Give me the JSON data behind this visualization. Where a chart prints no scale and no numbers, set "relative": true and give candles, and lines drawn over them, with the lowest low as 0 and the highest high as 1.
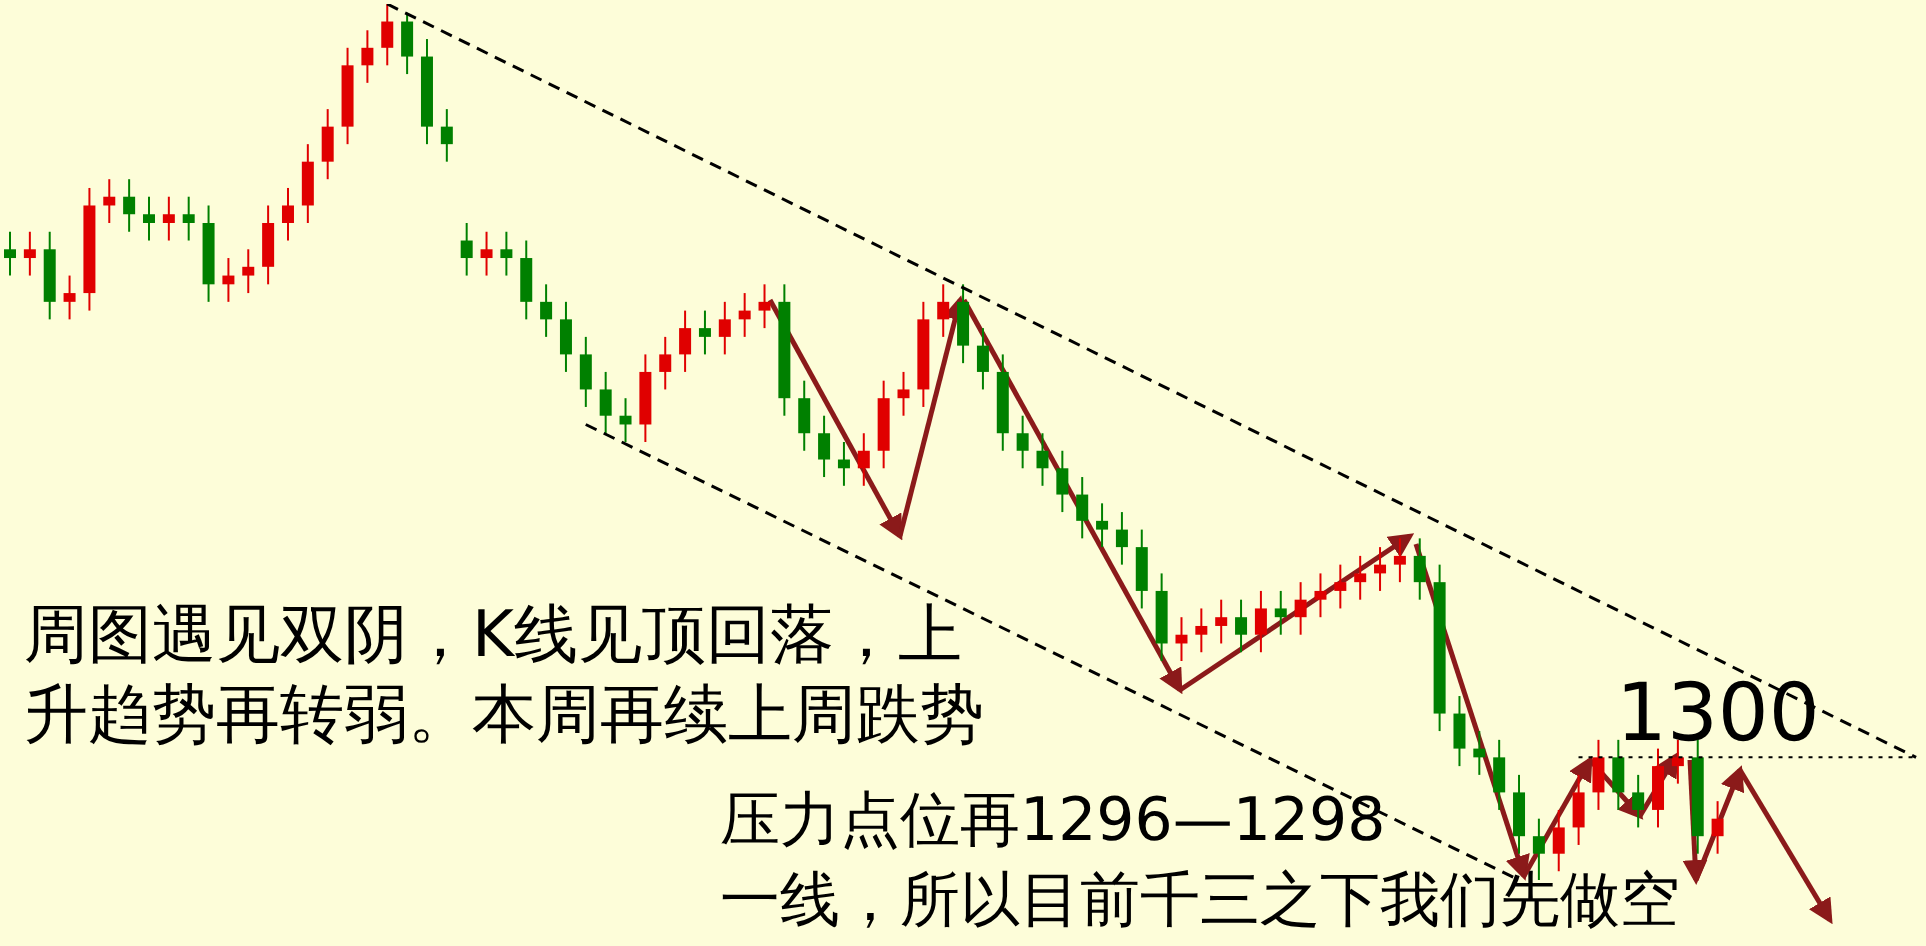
{
  "chart_data": {
    "type": "candlestick",
    "relative": true,
    "tick_labels": false,
    "categories": [
      null,
      null,
      null,
      null,
      null,
      null,
      null,
      null,
      null,
      null,
      null,
      null,
      null,
      null,
      null,
      null,
      null,
      null,
      null,
      null,
      null,
      null,
      null,
      null,
      null,
      null,
      null,
      null,
      null,
      null,
      null,
      null,
      null,
      null,
      null,
      null,
      null,
      null,
      null,
      null,
      null,
      null,
      null,
      null,
      null,
      null,
      null,
      null,
      null,
      null,
      null,
      null,
      null,
      null,
      null,
      null,
      null,
      null,
      null,
      null,
      null,
      null,
      null,
      null,
      null,
      null,
      null,
      null,
      null,
      null,
      null,
      null,
      null,
      null,
      null,
      null,
      null,
      null,
      null,
      null,
      null,
      null,
      null,
      null,
      null,
      null,
      null,
      null,
      null,
      null,
      null,
      null,
      null,
      null,
      null,
      null,
      null
    ],
    "series": [
      {
        "ohlc": [
          [
            0.72,
            0.74,
            0.69,
            0.71
          ],
          [
            0.71,
            0.74,
            0.69,
            0.72
          ],
          [
            0.72,
            0.74,
            0.64,
            0.66
          ],
          [
            0.66,
            0.69,
            0.64,
            0.67
          ],
          [
            0.67,
            0.79,
            0.65,
            0.77
          ],
          [
            0.77,
            0.8,
            0.75,
            0.78
          ],
          [
            0.78,
            0.8,
            0.74,
            0.76
          ],
          [
            0.76,
            0.78,
            0.73,
            0.75
          ],
          [
            0.75,
            0.78,
            0.73,
            0.76
          ],
          [
            0.76,
            0.78,
            0.73,
            0.75
          ],
          [
            0.75,
            0.77,
            0.66,
            0.68
          ],
          [
            0.68,
            0.71,
            0.66,
            0.69
          ],
          [
            0.69,
            0.72,
            0.67,
            0.7
          ],
          [
            0.7,
            0.77,
            0.68,
            0.75
          ],
          [
            0.75,
            0.79,
            0.73,
            0.77
          ],
          [
            0.77,
            0.84,
            0.75,
            0.82
          ],
          [
            0.82,
            0.88,
            0.8,
            0.86
          ],
          [
            0.86,
            0.95,
            0.84,
            0.93
          ],
          [
            0.93,
            0.97,
            0.91,
            0.95
          ],
          [
            0.95,
            1,
            0.93,
            0.98
          ],
          [
            0.98,
            0.99,
            0.92,
            0.94
          ],
          [
            0.94,
            0.96,
            0.84,
            0.86
          ],
          [
            0.86,
            0.88,
            0.82,
            0.84
          ],
          [
            0.73,
            0.75,
            0.69,
            0.71
          ],
          [
            0.71,
            0.74,
            0.69,
            0.72
          ],
          [
            0.72,
            0.74,
            0.69,
            0.71
          ],
          [
            0.71,
            0.73,
            0.64,
            0.66
          ],
          [
            0.66,
            0.68,
            0.62,
            0.64
          ],
          [
            0.64,
            0.66,
            0.58,
            0.6
          ],
          [
            0.6,
            0.62,
            0.54,
            0.56
          ],
          [
            0.56,
            0.58,
            0.51,
            0.53
          ],
          [
            0.53,
            0.55,
            0.5,
            0.52
          ],
          [
            0.52,
            0.6,
            0.5,
            0.58
          ],
          [
            0.58,
            0.62,
            0.56,
            0.6
          ],
          [
            0.6,
            0.65,
            0.58,
            0.63
          ],
          [
            0.63,
            0.65,
            0.6,
            0.62
          ],
          [
            0.62,
            0.66,
            0.6,
            0.64
          ],
          [
            0.64,
            0.67,
            0.62,
            0.65
          ],
          [
            0.65,
            0.68,
            0.63,
            0.66
          ],
          [
            0.66,
            0.68,
            0.53,
            0.55
          ],
          [
            0.55,
            0.57,
            0.49,
            0.51
          ],
          [
            0.51,
            0.53,
            0.46,
            0.48
          ],
          [
            0.48,
            0.5,
            0.45,
            0.47
          ],
          [
            0.47,
            0.51,
            0.45,
            0.49
          ],
          [
            0.49,
            0.57,
            0.47,
            0.55
          ],
          [
            0.55,
            0.58,
            0.53,
            0.56
          ],
          [
            0.56,
            0.66,
            0.54,
            0.64
          ],
          [
            0.64,
            0.68,
            0.62,
            0.66
          ],
          [
            0.66,
            0.68,
            0.59,
            0.61
          ],
          [
            0.61,
            0.63,
            0.56,
            0.58
          ],
          [
            0.58,
            0.6,
            0.49,
            0.51
          ],
          [
            0.51,
            0.53,
            0.47,
            0.49
          ],
          [
            0.49,
            0.51,
            0.45,
            0.47
          ],
          [
            0.47,
            0.49,
            0.42,
            0.44
          ],
          [
            0.44,
            0.46,
            0.39,
            0.41
          ],
          [
            0.41,
            0.43,
            0.38,
            0.4
          ],
          [
            0.4,
            0.42,
            0.36,
            0.38
          ],
          [
            0.38,
            0.4,
            0.31,
            0.33
          ],
          [
            0.33,
            0.35,
            0.25,
            0.27
          ],
          [
            0.27,
            0.3,
            0.25,
            0.28
          ],
          [
            0.28,
            0.31,
            0.26,
            0.29
          ],
          [
            0.29,
            0.32,
            0.27,
            0.3
          ],
          [
            0.3,
            0.32,
            0.26,
            0.28
          ],
          [
            0.28,
            0.33,
            0.26,
            0.31
          ],
          [
            0.31,
            0.33,
            0.28,
            0.3
          ],
          [
            0.3,
            0.34,
            0.28,
            0.32
          ],
          [
            0.32,
            0.35,
            0.3,
            0.33
          ],
          [
            0.33,
            0.36,
            0.31,
            0.34
          ],
          [
            0.34,
            0.37,
            0.32,
            0.35
          ],
          [
            0.35,
            0.38,
            0.33,
            0.36
          ],
          [
            0.36,
            0.39,
            0.34,
            0.37
          ],
          [
            0.37,
            0.39,
            0.32,
            0.34
          ],
          [
            0.34,
            0.36,
            0.17,
            0.19
          ],
          [
            0.19,
            0.21,
            0.13,
            0.15
          ],
          [
            0.15,
            0.17,
            0.12,
            0.14
          ],
          [
            0.14,
            0.16,
            0.08,
            0.1
          ],
          [
            0.1,
            0.12,
            0.03,
            0.05
          ],
          [
            0.05,
            0.07,
            0,
            0.03
          ],
          [
            0.03,
            0.08,
            0.01,
            0.06
          ],
          [
            0.06,
            0.12,
            0.04,
            0.1
          ],
          [
            0.1,
            0.16,
            0.08,
            0.14
          ],
          [
            0.14,
            0.16,
            0.08,
            0.1
          ],
          [
            0.1,
            0.12,
            0.06,
            0.08
          ],
          [
            0.08,
            0.15,
            0.06,
            0.13
          ],
          [
            0.13,
            0.16,
            0.11,
            0.14
          ],
          [
            0.14,
            0.16,
            0.03,
            0.05
          ],
          [
            0.05,
            0.09,
            0.03,
            0.07
          ],
          null,
          null,
          null,
          null,
          null,
          null,
          null,
          null,
          null,
          null
        ],
        "colors": [
          "#008000",
          "#e00000",
          "#008000",
          "#e00000",
          "#e00000",
          "#e00000",
          "#008000",
          "#008000",
          "#e00000",
          "#008000",
          "#008000",
          "#e00000",
          "#e00000",
          "#e00000",
          "#e00000",
          "#e00000",
          "#e00000",
          "#e00000",
          "#e00000",
          "#e00000",
          "#008000",
          "#008000",
          "#008000",
          "#008000",
          "#e00000",
          "#008000",
          "#008000",
          "#008000",
          "#008000",
          "#008000",
          "#008000",
          "#008000",
          "#e00000",
          "#e00000",
          "#e00000",
          "#008000",
          "#e00000",
          "#e00000",
          "#e00000",
          "#008000",
          "#008000",
          "#008000",
          "#008000",
          "#e00000",
          "#e00000",
          "#e00000",
          "#e00000",
          "#e00000",
          "#008000",
          "#008000",
          "#008000",
          "#008000",
          "#008000",
          "#008000",
          "#008000",
          "#008000",
          "#008000",
          "#008000",
          "#008000",
          "#e00000",
          "#e00000",
          "#e00000",
          "#008000",
          "#e00000",
          "#008000",
          "#e00000",
          "#e00000",
          "#e00000",
          "#e00000",
          "#e00000",
          "#e00000",
          "#008000",
          "#008000",
          "#008000",
          "#008000",
          "#008000",
          "#008000",
          "#008000",
          "#e00000",
          "#e00000",
          "#e00000",
          "#008000",
          "#008000",
          "#e00000",
          "#e00000",
          "#008000",
          "#e00000",
          null,
          null,
          null,
          null,
          null,
          null,
          null,
          null,
          null,
          null
        ]
      },
      {
        "type": "line",
        "color": "#000000",
        "line_style": "dashed",
        "values": [
          null,
          null,
          null,
          null,
          null,
          null,
          null,
          null,
          null,
          null,
          null,
          null,
          null,
          null,
          null,
          null,
          null,
          null,
          null,
          1,
          null,
          null,
          null,
          null,
          null,
          null,
          null,
          null,
          null,
          null,
          null,
          null,
          null,
          null,
          null,
          null,
          null,
          null,
          null,
          null,
          null,
          null,
          null,
          null,
          null,
          null,
          null,
          null,
          null,
          null,
          null,
          null,
          null,
          null,
          null,
          null,
          null,
          null,
          null,
          null,
          null,
          null,
          null,
          null,
          null,
          null,
          null,
          null,
          null,
          null,
          null,
          null,
          null,
          null,
          null,
          null,
          null,
          null,
          null,
          null,
          null,
          null,
          null,
          null,
          null,
          null,
          null,
          null,
          null,
          null,
          null,
          null,
          null,
          null,
          null,
          null,
          0.14
        ]
      },
      {
        "type": "line",
        "color": "#000000",
        "line_style": "dashed",
        "values": [
          null,
          null,
          null,
          null,
          null,
          null,
          null,
          null,
          null,
          null,
          null,
          null,
          null,
          null,
          null,
          null,
          null,
          null,
          null,
          null,
          null,
          null,
          null,
          null,
          null,
          null,
          null,
          null,
          null,
          0.52,
          null,
          null,
          null,
          null,
          null,
          null,
          null,
          null,
          null,
          null,
          null,
          null,
          null,
          null,
          null,
          null,
          null,
          null,
          null,
          null,
          null,
          null,
          null,
          null,
          null,
          null,
          null,
          null,
          null,
          null,
          null,
          null,
          null,
          null,
          null,
          null,
          null,
          null,
          null,
          null,
          null,
          null,
          null,
          null,
          null,
          null,
          0,
          null,
          null,
          null,
          null,
          null,
          null,
          null,
          null,
          null,
          null,
          null,
          null,
          null,
          null,
          null,
          null,
          null,
          null,
          null,
          null
        ]
      }
    ],
    "ref_lines": [
      {
        "axis": "y",
        "value": 0.14,
        "color": "#000000",
        "line_style": "dotted"
      }
    ],
    "annotations": [
      "周图遇见双阴，K线见顶回落，上升趋势再转弱。本周再续上周跌势",
      "压力点位再1296—1298",
      "一线，所以目前千三之下我们先做空",
      "1300"
    ]
  }
}
